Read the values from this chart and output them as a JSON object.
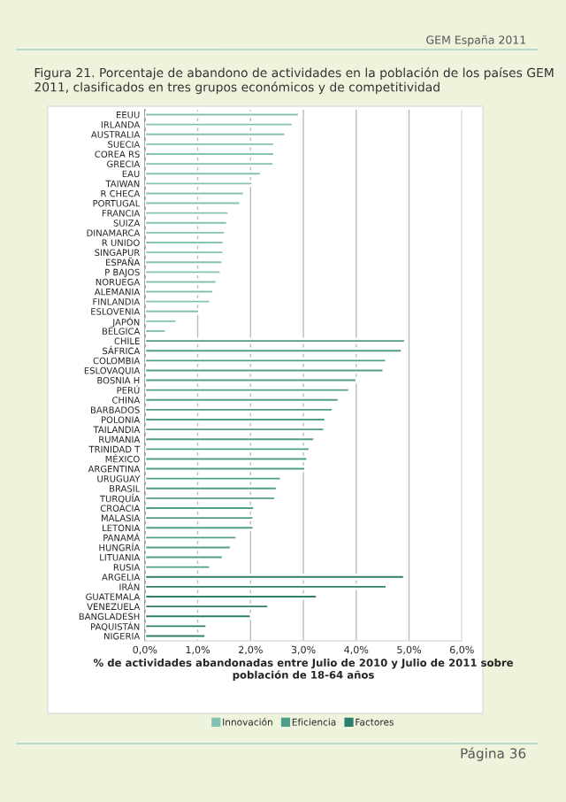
{
  "chart_data": {
    "type": "bar",
    "orientation": "horizontal",
    "title": "Figura 21. Porcentaje de abandono de actividades en la población de los países GEM 2011, clasificados en tres grupos económicos y de competitividad",
    "xlabel": "% de actividades abandonadas entre Julio de 2010 y Julio de 2011 sobre población de 18-64 años",
    "categories": [
      "EEUU",
      "IRLANDA",
      "AUSTRALIA",
      "SUECIA",
      "COREA RS",
      "GRECIA",
      "EAU",
      "TAIWAN",
      "R CHECA",
      "PORTUGAL",
      "FRANCIA",
      "SUIZA",
      "DINAMARCA",
      "R UNIDO",
      "SINGAPUR",
      "ESPAÑA",
      "P BAJOS",
      "NORUEGA",
      "ALEMANIA",
      "FINLANDIA",
      "ESLOVENIA",
      "JAPÓN",
      "BÉLGICA",
      "CHILE",
      "SÁFRICA",
      "COLOMBIA",
      "ESLOVAQUIA",
      "BOSNIA H",
      "PERÚ",
      "CHINA",
      "BARBADOS",
      "POLONIA",
      "TAILANDIA",
      "RUMANIA",
      "TRINIDAD T",
      "MÉXICO",
      "ARGENTINA",
      "URUGUAY",
      "BRASIL",
      "TURQUÍA",
      "CROACIA",
      "MALASIA",
      "LETONIA",
      "PANAMÁ",
      "HUNGRÍA",
      "LITUANIA",
      "RUSIA",
      "ARGELIA",
      "IRÁN",
      "GUATEMALA",
      "VENEZUELA",
      "BANGLADESH",
      "PAQUISTÁN",
      "NIGERIA"
    ],
    "series": [
      {
        "name": "Innovación",
        "color": "#86c2b1",
        "values": [
          2.92,
          2.8,
          2.66,
          2.45,
          2.45,
          2.44,
          2.2,
          2.04,
          1.88,
          1.81,
          1.59,
          1.56,
          1.52,
          1.49,
          1.49,
          1.47,
          1.44,
          1.36,
          1.3,
          1.24,
          1.03,
          0.6,
          0.4,
          null,
          null,
          null,
          null,
          null,
          null,
          null,
          null,
          null,
          null,
          null,
          null,
          null,
          null,
          null,
          null,
          null,
          null,
          null,
          null,
          null,
          null,
          null,
          null,
          null,
          null,
          null,
          null,
          null,
          null,
          null
        ]
      },
      {
        "name": "Eficiencia",
        "color": "#4f9e8c",
        "values": [
          null,
          null,
          null,
          null,
          null,
          null,
          null,
          null,
          null,
          null,
          null,
          null,
          null,
          null,
          null,
          null,
          null,
          null,
          null,
          null,
          null,
          null,
          null,
          4.93,
          4.87,
          4.57,
          4.52,
          4.01,
          3.87,
          3.67,
          3.56,
          3.42,
          3.4,
          3.21,
          3.12,
          3.08,
          3.04,
          2.58,
          2.5,
          2.47,
          2.07,
          2.06,
          2.06,
          1.74,
          1.63,
          1.48,
          1.24,
          null,
          null,
          null,
          null,
          null,
          null,
          null
        ]
      },
      {
        "name": "Factores",
        "color": "#2f7f6d",
        "values": [
          null,
          null,
          null,
          null,
          null,
          null,
          null,
          null,
          null,
          null,
          null,
          null,
          null,
          null,
          null,
          null,
          null,
          null,
          null,
          null,
          null,
          null,
          null,
          null,
          null,
          null,
          null,
          null,
          null,
          null,
          null,
          null,
          null,
          null,
          null,
          null,
          null,
          null,
          null,
          null,
          null,
          null,
          null,
          null,
          null,
          null,
          null,
          4.91,
          4.58,
          3.26,
          2.34,
          2.01,
          1.17,
          1.15
        ]
      }
    ],
    "xlim": [
      0,
      6
    ],
    "xticks": [
      {
        "value": 0,
        "label": "0,0%"
      },
      {
        "value": 1,
        "label": "1,0%"
      },
      {
        "value": 2,
        "label": "2,0%"
      },
      {
        "value": 3,
        "label": "3,0%"
      },
      {
        "value": 4,
        "label": "4,0%"
      },
      {
        "value": 5,
        "label": "5,0%"
      },
      {
        "value": 6,
        "label": "6,0%"
      }
    ],
    "grid": "x",
    "legend": "bottom",
    "annotations": [
      "GEM España 2011",
      "Página 36"
    ]
  }
}
